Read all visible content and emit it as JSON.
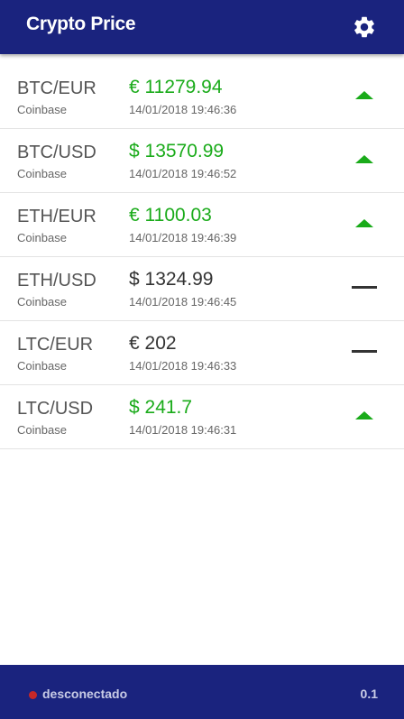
{
  "header": {
    "title": "Crypto Price",
    "settings_icon": "gear-icon"
  },
  "colors": {
    "header_bg": "#1a237e",
    "up": "#1aab1a",
    "neutral": "#333333",
    "status_dot": "#c62828"
  },
  "tickers": [
    {
      "pair": "BTC/EUR",
      "exchange": "Coinbase",
      "price": "€ 11279.94",
      "time": "14/01/2018 19:46:36",
      "trend": "up"
    },
    {
      "pair": "BTC/USD",
      "exchange": "Coinbase",
      "price": "$ 13570.99",
      "time": "14/01/2018 19:46:52",
      "trend": "up"
    },
    {
      "pair": "ETH/EUR",
      "exchange": "Coinbase",
      "price": "€ 1100.03",
      "time": "14/01/2018 19:46:39",
      "trend": "up"
    },
    {
      "pair": "ETH/USD",
      "exchange": "Coinbase",
      "price": "$ 1324.99",
      "time": "14/01/2018 19:46:45",
      "trend": "flat"
    },
    {
      "pair": "LTC/EUR",
      "exchange": "Coinbase",
      "price": "€ 202",
      "time": "14/01/2018 19:46:33",
      "trend": "flat"
    },
    {
      "pair": "LTC/USD",
      "exchange": "Coinbase",
      "price": "$ 241.7",
      "time": "14/01/2018 19:46:31",
      "trend": "up"
    }
  ],
  "footer": {
    "status": "desconectado",
    "version": "0.1"
  }
}
